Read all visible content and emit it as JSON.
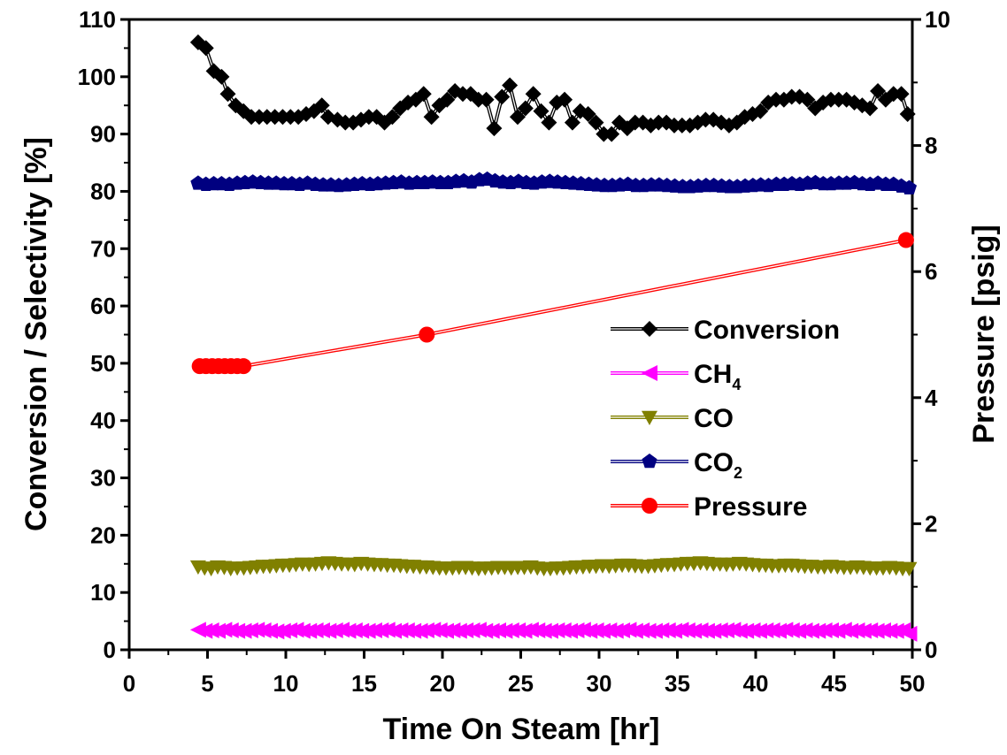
{
  "chart_data": {
    "type": "line",
    "xlabel": "Time On Steam [hr]",
    "ylabel": "Conversion / Selectivity [%]",
    "y2label": "Pressure [psig]",
    "xlim": [
      0,
      50
    ],
    "ylim": [
      0,
      110
    ],
    "y2lim": [
      0,
      10
    ],
    "xticks": [
      "0",
      "5",
      "10",
      "15",
      "20",
      "25",
      "30",
      "35",
      "40",
      "45",
      "50"
    ],
    "yticks": [
      "0",
      "10",
      "20",
      "30",
      "40",
      "50",
      "60",
      "70",
      "80",
      "90",
      "100",
      "110"
    ],
    "y2ticks": [
      "0",
      "2",
      "4",
      "6",
      "8",
      "10"
    ],
    "grid": false,
    "legend_position": "center-right",
    "series": [
      {
        "name": "Conversion",
        "axis": "left",
        "marker": "diamond",
        "color": "#000000",
        "x": [
          4.4,
          4.9,
          5.4,
          5.9,
          6.3,
          6.8,
          7.3,
          7.8,
          8.3,
          8.8,
          9.3,
          9.8,
          10.3,
          10.8,
          11.3,
          11.8,
          12.3,
          12.7,
          13.3,
          13.8,
          14.3,
          14.8,
          15.3,
          15.8,
          16.3,
          16.8,
          17.3,
          17.8,
          18.3,
          18.8,
          19.3,
          19.8,
          20.3,
          20.8,
          21.3,
          21.8,
          22.3,
          22.8,
          23.3,
          23.8,
          24.3,
          24.8,
          25.3,
          25.8,
          26.3,
          26.8,
          27.3,
          27.8,
          28.3,
          28.8,
          29.3,
          29.8,
          30.3,
          30.8,
          31.3,
          31.8,
          32.3,
          32.8,
          33.3,
          33.8,
          34.3,
          34.8,
          35.3,
          35.8,
          36.3,
          36.8,
          37.3,
          37.8,
          38.3,
          38.8,
          39.3,
          39.8,
          40.3,
          40.8,
          41.3,
          41.8,
          42.3,
          42.8,
          43.3,
          43.8,
          44.3,
          44.8,
          45.3,
          45.8,
          46.3,
          46.8,
          47.3,
          47.8,
          48.3,
          48.8,
          49.3,
          49.7
        ],
        "values": [
          106,
          105,
          101,
          100,
          97,
          95,
          94,
          93,
          93,
          93,
          93,
          93,
          93,
          93,
          93.5,
          94,
          95,
          93,
          92.5,
          92,
          92,
          92.5,
          93,
          93,
          92,
          93,
          94.5,
          95.5,
          96,
          97,
          93,
          95,
          96,
          97.5,
          97,
          97,
          96,
          96,
          91,
          96.5,
          98.5,
          93,
          94.5,
          97,
          94,
          92,
          95.5,
          96,
          92,
          94,
          93.5,
          92,
          90,
          90,
          92,
          91,
          92,
          92,
          91.5,
          92,
          92,
          91.5,
          91.5,
          91.5,
          92,
          92.5,
          92.5,
          92,
          91.5,
          92,
          93,
          93.5,
          94,
          95.5,
          96,
          96,
          96.5,
          96.5,
          96,
          94.5,
          95.5,
          96,
          96,
          96,
          95.5,
          95,
          94.5,
          97.5,
          96,
          97,
          97,
          93.5
        ]
      },
      {
        "name": "CH4",
        "name_main": "CH",
        "name_sub": "4",
        "axis": "left",
        "marker": "triangle-left",
        "color": "#ff00ff",
        "x_start": 4.4,
        "x_end": 49.8,
        "count": 110,
        "values": [
          3.5,
          3.3,
          3.4,
          3.3,
          3.5,
          3.4,
          3.3,
          3.3,
          3.4,
          3.5,
          3.4,
          3.3,
          3.2,
          3.3,
          3.4,
          3.5,
          3.3,
          3.3,
          3.4,
          3.4,
          3.3,
          3.4,
          3.5,
          3.3,
          3.4,
          3.3,
          3.3,
          3.4,
          3.4,
          3.5,
          3.3,
          3.4,
          3.4,
          3.3,
          3.3,
          3.4,
          3.5,
          3.4,
          3.3,
          3.4,
          3.3,
          3.4,
          3.4,
          3.5,
          3.3,
          3.3,
          3.4,
          3.3,
          3.4,
          3.4,
          3.3,
          3.5,
          3.4,
          3.3,
          3.3,
          3.4,
          3.4,
          3.3,
          3.4,
          3.5,
          3.3,
          3.4,
          3.3,
          3.4,
          3.3,
          3.4,
          3.5,
          3.3,
          3.4,
          3.3,
          3.3,
          3.4,
          3.4,
          3.3,
          3.5,
          3.4,
          3.3,
          3.4,
          3.3,
          3.3,
          3.4,
          3.4,
          3.5,
          3.3,
          3.3,
          3.4,
          3.3,
          3.4,
          3.4,
          3.3,
          3.5,
          3.4,
          3.3,
          3.4,
          3.3,
          3.3,
          3.4,
          3.4,
          3.3,
          3.5,
          3.3,
          3.4,
          3.3,
          3.4,
          3.3,
          3.4,
          3.3,
          3.3,
          3.4,
          2.8
        ]
      },
      {
        "name": "CO",
        "axis": "left",
        "marker": "triangle-down",
        "color": "#808000",
        "x_start": 4.4,
        "x_end": 49.8,
        "count": 110,
        "values": [
          14.5,
          14.3,
          14.2,
          14.5,
          14.4,
          14.2,
          14.3,
          14.3,
          14.4,
          14.5,
          14.6,
          14.6,
          14.7,
          14.8,
          14.8,
          14.9,
          15.0,
          14.9,
          15.0,
          15.1,
          15.2,
          15.1,
          15.0,
          15.0,
          14.9,
          15.1,
          15.0,
          14.9,
          14.9,
          14.8,
          14.8,
          14.7,
          14.6,
          14.6,
          14.5,
          14.5,
          14.4,
          14.3,
          14.3,
          14.3,
          14.4,
          14.4,
          14.3,
          14.2,
          14.3,
          14.3,
          14.4,
          14.4,
          14.3,
          14.4,
          14.4,
          14.5,
          14.3,
          14.2,
          14.2,
          14.3,
          14.3,
          14.4,
          14.5,
          14.5,
          14.6,
          14.6,
          14.7,
          14.6,
          14.7,
          14.8,
          14.8,
          14.7,
          14.6,
          14.6,
          14.7,
          14.8,
          14.9,
          14.9,
          15.0,
          15.1,
          15.1,
          15.2,
          15.1,
          15.0,
          15.0,
          14.9,
          15.0,
          15.1,
          15.0,
          14.9,
          14.8,
          14.8,
          14.7,
          14.7,
          14.8,
          14.8,
          14.7,
          14.6,
          14.6,
          14.5,
          14.5,
          14.6,
          14.5,
          14.4,
          14.4,
          14.5,
          14.4,
          14.3,
          14.3,
          14.3,
          14.4,
          14.3,
          14.2,
          14.2
        ]
      },
      {
        "name": "CO2",
        "name_main": "CO",
        "name_sub": "2",
        "axis": "left",
        "marker": "pentagon",
        "color": "#000080",
        "x_start": 4.4,
        "x_end": 49.8,
        "count": 92,
        "values": [
          81.4,
          81.2,
          81.3,
          81.3,
          81.2,
          81.4,
          81.5,
          81.6,
          81.5,
          81.4,
          81.4,
          81.3,
          81.3,
          81.2,
          81.4,
          81.2,
          81.1,
          81.1,
          81.0,
          81.1,
          81.2,
          81.3,
          81.2,
          81.3,
          81.4,
          81.5,
          81.6,
          81.4,
          81.5,
          81.5,
          81.6,
          81.5,
          81.5,
          81.7,
          81.8,
          81.6,
          82.0,
          82.1,
          81.8,
          81.6,
          81.5,
          81.7,
          81.5,
          81.4,
          81.6,
          81.7,
          81.6,
          81.5,
          81.4,
          81.3,
          81.2,
          81.1,
          81.0,
          81.0,
          81.1,
          81.2,
          81.0,
          81.0,
          81.1,
          81.1,
          81.0,
          80.9,
          80.8,
          80.8,
          80.9,
          81.0,
          81.0,
          80.9,
          80.8,
          80.8,
          80.9,
          81.0,
          81.1,
          81.0,
          81.2,
          81.2,
          81.3,
          81.2,
          81.4,
          81.5,
          81.3,
          81.3,
          81.4,
          81.4,
          81.5,
          81.3,
          81.2,
          81.4,
          81.2,
          81.2,
          80.9,
          80.6
        ]
      },
      {
        "name": "Pressure",
        "axis": "right",
        "marker": "circle",
        "color": "#ff0000",
        "x": [
          4.5,
          4.9,
          5.3,
          5.7,
          6.1,
          6.5,
          6.9,
          7.3,
          19.0,
          49.6
        ],
        "values": [
          4.5,
          4.5,
          4.5,
          4.5,
          4.5,
          4.5,
          4.5,
          4.5,
          5.0,
          6.5
        ]
      }
    ]
  }
}
